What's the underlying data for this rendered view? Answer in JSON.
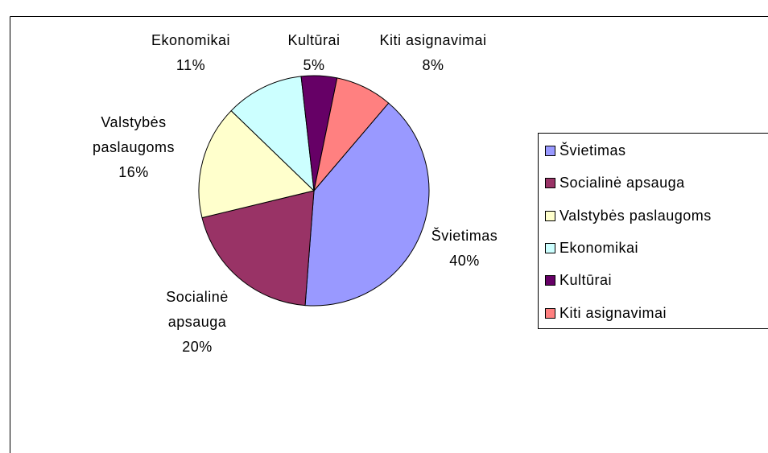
{
  "chart_data": {
    "type": "pie",
    "categories": [
      "Švietimas",
      "Socialinė apsauga",
      "Valstybės paslaugoms",
      "Ekonomikai",
      "Kultūrai",
      "Kiti asignavimai"
    ],
    "values": [
      40,
      20,
      16,
      11,
      5,
      8
    ],
    "value_labels": [
      "40%",
      "20%",
      "16%",
      "11%",
      "5%",
      "8%"
    ],
    "colors": [
      "#9999ff",
      "#993366",
      "#ffffcc",
      "#ccffff",
      "#660066",
      "#ff8080"
    ],
    "legend": "right"
  }
}
